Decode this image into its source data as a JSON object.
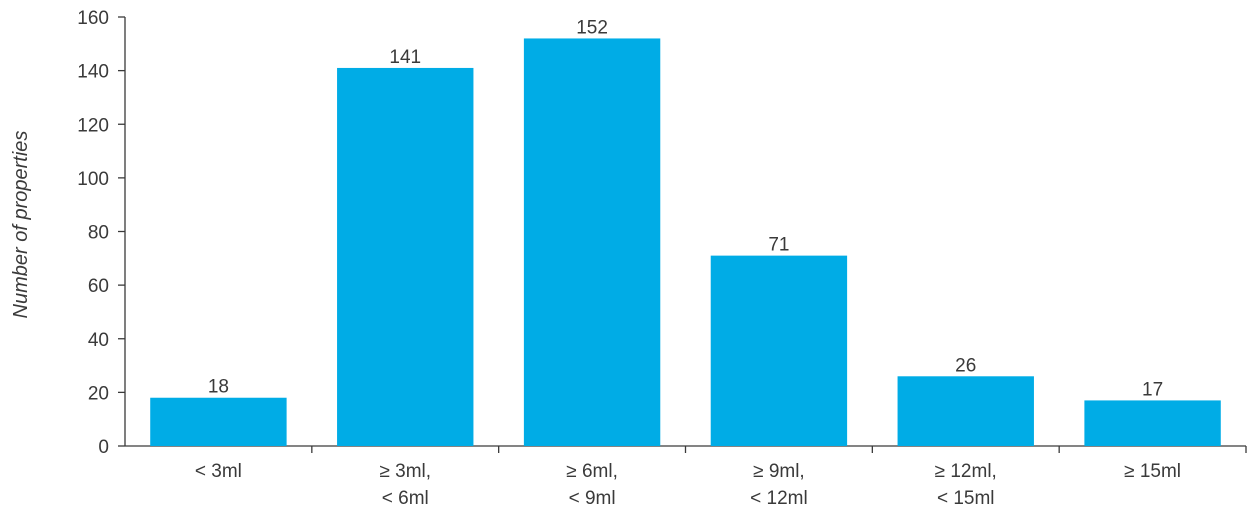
{
  "chart_data": {
    "type": "bar",
    "title": "",
    "xlabel": "",
    "ylabel": "Number of properties",
    "ylim": [
      0,
      160
    ],
    "yticks": [
      0,
      20,
      40,
      60,
      80,
      100,
      120,
      140,
      160
    ],
    "categories": [
      [
        "< 3ml"
      ],
      [
        "≥ 3ml,",
        "< 6ml"
      ],
      [
        "≥ 6ml,",
        "< 9ml"
      ],
      [
        "≥ 9ml,",
        "< 12ml"
      ],
      [
        "≥ 12ml,",
        "< 15ml"
      ],
      [
        "≥ 15ml"
      ]
    ],
    "values": [
      18,
      141,
      152,
      71,
      26,
      17
    ],
    "grid": false,
    "legend": "none",
    "bar_color": "#00ace6",
    "axis_color": "#3a3a3a"
  }
}
